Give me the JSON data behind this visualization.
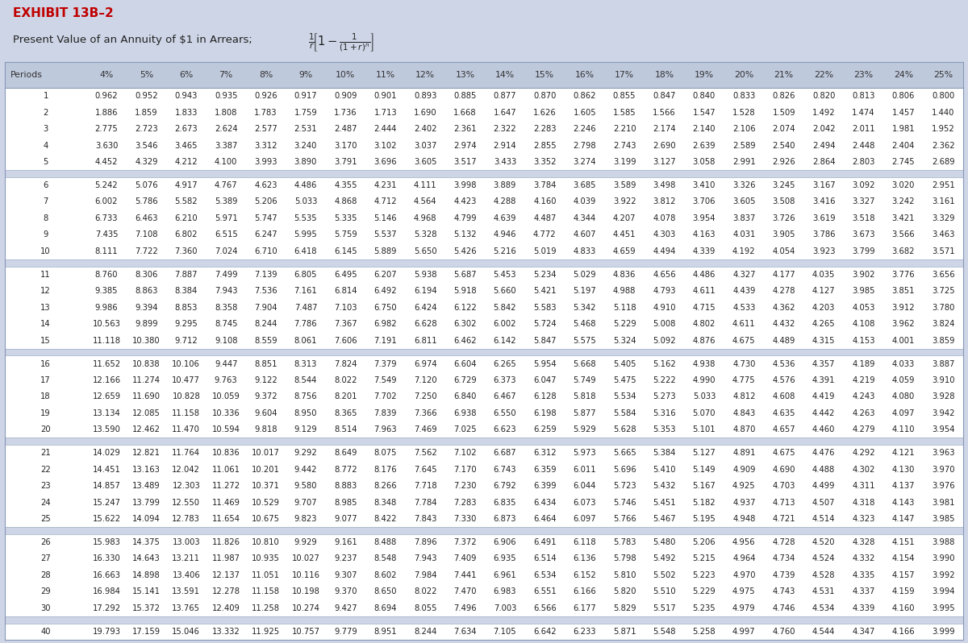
{
  "title_line1": "EXHIBIT 13B–2",
  "title_line2": "Present Value of an Annuity of $1 in Arrears; ",
  "header": [
    "Periods",
    "4%",
    "5%",
    "6%",
    "7%",
    "8%",
    "9%",
    "10%",
    "11%",
    "12%",
    "13%",
    "14%",
    "15%",
    "16%",
    "17%",
    "18%",
    "19%",
    "20%",
    "21%",
    "22%",
    "23%",
    "24%",
    "25%"
  ],
  "rows": [
    [
      1,
      0.962,
      0.952,
      0.943,
      0.935,
      0.926,
      0.917,
      0.909,
      0.901,
      0.893,
      0.885,
      0.877,
      0.87,
      0.862,
      0.855,
      0.847,
      0.84,
      0.833,
      0.826,
      0.82,
      0.813,
      0.806,
      0.8
    ],
    [
      2,
      1.886,
      1.859,
      1.833,
      1.808,
      1.783,
      1.759,
      1.736,
      1.713,
      1.69,
      1.668,
      1.647,
      1.626,
      1.605,
      1.585,
      1.566,
      1.547,
      1.528,
      1.509,
      1.492,
      1.474,
      1.457,
      1.44
    ],
    [
      3,
      2.775,
      2.723,
      2.673,
      2.624,
      2.577,
      2.531,
      2.487,
      2.444,
      2.402,
      2.361,
      2.322,
      2.283,
      2.246,
      2.21,
      2.174,
      2.14,
      2.106,
      2.074,
      2.042,
      2.011,
      1.981,
      1.952
    ],
    [
      4,
      3.63,
      3.546,
      3.465,
      3.387,
      3.312,
      3.24,
      3.17,
      3.102,
      3.037,
      2.974,
      2.914,
      2.855,
      2.798,
      2.743,
      2.69,
      2.639,
      2.589,
      2.54,
      2.494,
      2.448,
      2.404,
      2.362
    ],
    [
      5,
      4.452,
      4.329,
      4.212,
      4.1,
      3.993,
      3.89,
      3.791,
      3.696,
      3.605,
      3.517,
      3.433,
      3.352,
      3.274,
      3.199,
      3.127,
      3.058,
      2.991,
      2.926,
      2.864,
      2.803,
      2.745,
      2.689
    ],
    [
      6,
      5.242,
      5.076,
      4.917,
      4.767,
      4.623,
      4.486,
      4.355,
      4.231,
      4.111,
      3.998,
      3.889,
      3.784,
      3.685,
      3.589,
      3.498,
      3.41,
      3.326,
      3.245,
      3.167,
      3.092,
      3.02,
      2.951
    ],
    [
      7,
      6.002,
      5.786,
      5.582,
      5.389,
      5.206,
      5.033,
      4.868,
      4.712,
      4.564,
      4.423,
      4.288,
      4.16,
      4.039,
      3.922,
      3.812,
      3.706,
      3.605,
      3.508,
      3.416,
      3.327,
      3.242,
      3.161
    ],
    [
      8,
      6.733,
      6.463,
      6.21,
      5.971,
      5.747,
      5.535,
      5.335,
      5.146,
      4.968,
      4.799,
      4.639,
      4.487,
      4.344,
      4.207,
      4.078,
      3.954,
      3.837,
      3.726,
      3.619,
      3.518,
      3.421,
      3.329
    ],
    [
      9,
      7.435,
      7.108,
      6.802,
      6.515,
      6.247,
      5.995,
      5.759,
      5.537,
      5.328,
      5.132,
      4.946,
      4.772,
      4.607,
      4.451,
      4.303,
      4.163,
      4.031,
      3.905,
      3.786,
      3.673,
      3.566,
      3.463
    ],
    [
      10,
      8.111,
      7.722,
      7.36,
      7.024,
      6.71,
      6.418,
      6.145,
      5.889,
      5.65,
      5.426,
      5.216,
      5.019,
      4.833,
      4.659,
      4.494,
      4.339,
      4.192,
      4.054,
      3.923,
      3.799,
      3.682,
      3.571
    ],
    [
      11,
      8.76,
      8.306,
      7.887,
      7.499,
      7.139,
      6.805,
      6.495,
      6.207,
      5.938,
      5.687,
      5.453,
      5.234,
      5.029,
      4.836,
      4.656,
      4.486,
      4.327,
      4.177,
      4.035,
      3.902,
      3.776,
      3.656
    ],
    [
      12,
      9.385,
      8.863,
      8.384,
      7.943,
      7.536,
      7.161,
      6.814,
      6.492,
      6.194,
      5.918,
      5.66,
      5.421,
      5.197,
      4.988,
      4.793,
      4.611,
      4.439,
      4.278,
      4.127,
      3.985,
      3.851,
      3.725
    ],
    [
      13,
      9.986,
      9.394,
      8.853,
      8.358,
      7.904,
      7.487,
      7.103,
      6.75,
      6.424,
      6.122,
      5.842,
      5.583,
      5.342,
      5.118,
      4.91,
      4.715,
      4.533,
      4.362,
      4.203,
      4.053,
      3.912,
      3.78
    ],
    [
      14,
      10.563,
      9.899,
      9.295,
      8.745,
      8.244,
      7.786,
      7.367,
      6.982,
      6.628,
      6.302,
      6.002,
      5.724,
      5.468,
      5.229,
      5.008,
      4.802,
      4.611,
      4.432,
      4.265,
      4.108,
      3.962,
      3.824
    ],
    [
      15,
      11.118,
      10.38,
      9.712,
      9.108,
      8.559,
      8.061,
      7.606,
      7.191,
      6.811,
      6.462,
      6.142,
      5.847,
      5.575,
      5.324,
      5.092,
      4.876,
      4.675,
      4.489,
      4.315,
      4.153,
      4.001,
      3.859
    ],
    [
      16,
      11.652,
      10.838,
      10.106,
      9.447,
      8.851,
      8.313,
      7.824,
      7.379,
      6.974,
      6.604,
      6.265,
      5.954,
      5.668,
      5.405,
      5.162,
      4.938,
      4.73,
      4.536,
      4.357,
      4.189,
      4.033,
      3.887
    ],
    [
      17,
      12.166,
      11.274,
      10.477,
      9.763,
      9.122,
      8.544,
      8.022,
      7.549,
      7.12,
      6.729,
      6.373,
      6.047,
      5.749,
      5.475,
      5.222,
      4.99,
      4.775,
      4.576,
      4.391,
      4.219,
      4.059,
      3.91
    ],
    [
      18,
      12.659,
      11.69,
      10.828,
      10.059,
      9.372,
      8.756,
      8.201,
      7.702,
      7.25,
      6.84,
      6.467,
      6.128,
      5.818,
      5.534,
      5.273,
      5.033,
      4.812,
      4.608,
      4.419,
      4.243,
      4.08,
      3.928
    ],
    [
      19,
      13.134,
      12.085,
      11.158,
      10.336,
      9.604,
      8.95,
      8.365,
      7.839,
      7.366,
      6.938,
      6.55,
      6.198,
      5.877,
      5.584,
      5.316,
      5.07,
      4.843,
      4.635,
      4.442,
      4.263,
      4.097,
      3.942
    ],
    [
      20,
      13.59,
      12.462,
      11.47,
      10.594,
      9.818,
      9.129,
      8.514,
      7.963,
      7.469,
      7.025,
      6.623,
      6.259,
      5.929,
      5.628,
      5.353,
      5.101,
      4.87,
      4.657,
      4.46,
      4.279,
      4.11,
      3.954
    ],
    [
      21,
      14.029,
      12.821,
      11.764,
      10.836,
      10.017,
      9.292,
      8.649,
      8.075,
      7.562,
      7.102,
      6.687,
      6.312,
      5.973,
      5.665,
      5.384,
      5.127,
      4.891,
      4.675,
      4.476,
      4.292,
      4.121,
      3.963
    ],
    [
      22,
      14.451,
      13.163,
      12.042,
      11.061,
      10.201,
      9.442,
      8.772,
      8.176,
      7.645,
      7.17,
      6.743,
      6.359,
      6.011,
      5.696,
      5.41,
      5.149,
      4.909,
      4.69,
      4.488,
      4.302,
      4.13,
      3.97
    ],
    [
      23,
      14.857,
      13.489,
      12.303,
      11.272,
      10.371,
      9.58,
      8.883,
      8.266,
      7.718,
      7.23,
      6.792,
      6.399,
      6.044,
      5.723,
      5.432,
      5.167,
      4.925,
      4.703,
      4.499,
      4.311,
      4.137,
      3.976
    ],
    [
      24,
      15.247,
      13.799,
      12.55,
      11.469,
      10.529,
      9.707,
      8.985,
      8.348,
      7.784,
      7.283,
      6.835,
      6.434,
      6.073,
      5.746,
      5.451,
      5.182,
      4.937,
      4.713,
      4.507,
      4.318,
      4.143,
      3.981
    ],
    [
      25,
      15.622,
      14.094,
      12.783,
      11.654,
      10.675,
      9.823,
      9.077,
      8.422,
      7.843,
      7.33,
      6.873,
      6.464,
      6.097,
      5.766,
      5.467,
      5.195,
      4.948,
      4.721,
      4.514,
      4.323,
      4.147,
      3.985
    ],
    [
      26,
      15.983,
      14.375,
      13.003,
      11.826,
      10.81,
      9.929,
      9.161,
      8.488,
      7.896,
      7.372,
      6.906,
      6.491,
      6.118,
      5.783,
      5.48,
      5.206,
      4.956,
      4.728,
      4.52,
      4.328,
      4.151,
      3.988
    ],
    [
      27,
      16.33,
      14.643,
      13.211,
      11.987,
      10.935,
      10.027,
      9.237,
      8.548,
      7.943,
      7.409,
      6.935,
      6.514,
      6.136,
      5.798,
      5.492,
      5.215,
      4.964,
      4.734,
      4.524,
      4.332,
      4.154,
      3.99
    ],
    [
      28,
      16.663,
      14.898,
      13.406,
      12.137,
      11.051,
      10.116,
      9.307,
      8.602,
      7.984,
      7.441,
      6.961,
      6.534,
      6.152,
      5.81,
      5.502,
      5.223,
      4.97,
      4.739,
      4.528,
      4.335,
      4.157,
      3.992
    ],
    [
      29,
      16.984,
      15.141,
      13.591,
      12.278,
      11.158,
      10.198,
      9.37,
      8.65,
      8.022,
      7.47,
      6.983,
      6.551,
      6.166,
      5.82,
      5.51,
      5.229,
      4.975,
      4.743,
      4.531,
      4.337,
      4.159,
      3.994
    ],
    [
      30,
      17.292,
      15.372,
      13.765,
      12.409,
      11.258,
      10.274,
      9.427,
      8.694,
      8.055,
      7.496,
      7.003,
      6.566,
      6.177,
      5.829,
      5.517,
      5.235,
      4.979,
      4.746,
      4.534,
      4.339,
      4.16,
      3.995
    ],
    [
      40,
      19.793,
      17.159,
      15.046,
      13.332,
      11.925,
      10.757,
      9.779,
      8.951,
      8.244,
      7.634,
      7.105,
      6.642,
      6.233,
      5.871,
      5.548,
      5.258,
      4.997,
      4.76,
      4.544,
      4.347,
      4.166,
      3.999
    ]
  ],
  "gap_after_indices": [
    4,
    9,
    14,
    19,
    24,
    29
  ],
  "bg_color_outer": "#cdd5e6",
  "bg_color_header": "#bfc9dc",
  "bg_color_white": "#ffffff",
  "bg_color_table": "#dde3ef",
  "title_color": "#c00000",
  "text_color": "#222222",
  "header_text_color": "#333333",
  "fs_header": 7.8,
  "fs_data": 7.2,
  "fs_title1": 11.0,
  "fs_title2": 9.5
}
